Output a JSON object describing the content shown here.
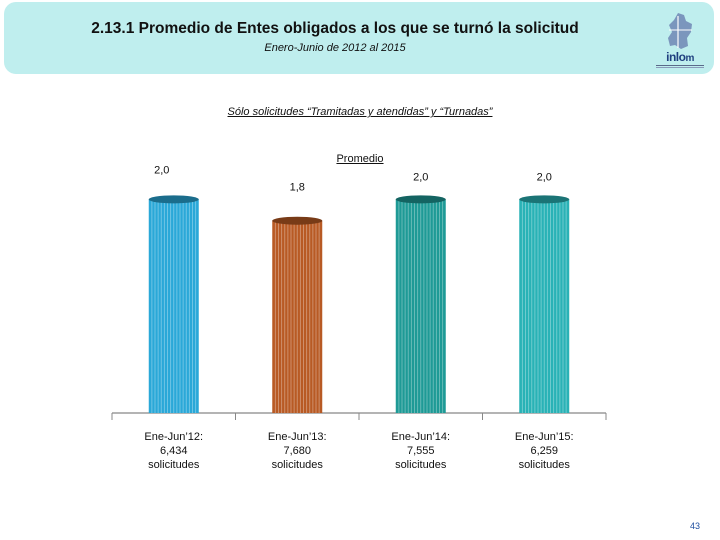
{
  "header": {
    "title": "2.13.1 Promedio de Entes obligados a los que se turnó la solicitud",
    "subtitle": "Enero-Junio de 2012 al 2015",
    "logo": {
      "name": "inlo",
      "suffix": "m"
    }
  },
  "caption": "Sólo solicitudes “Tramitadas y atendidas” y “Turnadas”",
  "page_number": "43",
  "chart_data": {
    "type": "bar",
    "title": "",
    "xlabel": "",
    "ylabel": "",
    "ylim": [
      0,
      2.2
    ],
    "grid": false,
    "legend": "top-center",
    "series": [
      {
        "name": "Promedio",
        "values": [
          2.0,
          1.8,
          2.0,
          2.0
        ]
      }
    ],
    "value_labels": [
      "2,0",
      "1,8",
      "2,0",
      "2,0"
    ],
    "categories": [
      [
        "Ene-Jun’12:",
        "6,434",
        "solicitudes"
      ],
      [
        "Ene-Jun’13:",
        "7,680",
        "solicitudes"
      ],
      [
        "Ene-Jun’14:",
        "7,555",
        "solicitudes"
      ],
      [
        "Ene-Jun’15:",
        "6,259",
        "solicitudes"
      ]
    ],
    "colors": [
      "#2aa8d8",
      "#b85a24",
      "#1e9a96",
      "#29b2b6"
    ]
  }
}
